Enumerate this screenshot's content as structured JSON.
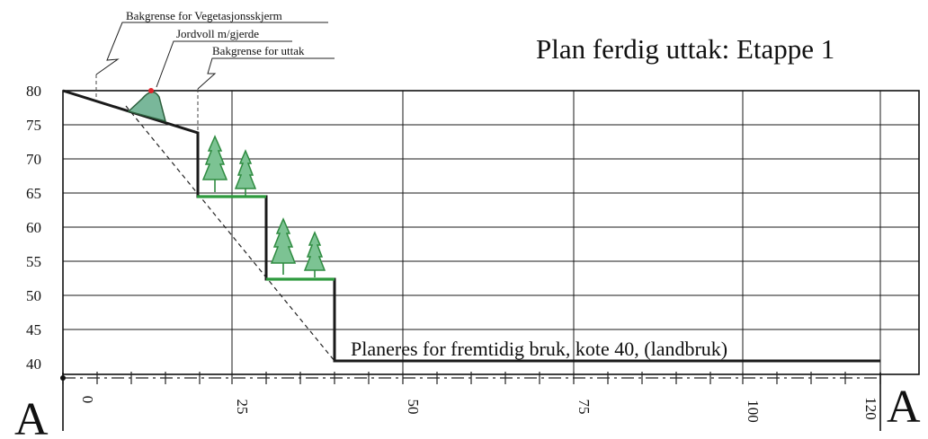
{
  "title": "Plan ferdig uttak:   Etappe 1",
  "callouts": {
    "vegetation_limit": "Bakgrense for Vegetasjonsskjerm",
    "berm": "Jordvoll m/gjerde",
    "excavation_limit": "Bakgrense for uttak"
  },
  "annotation": "Planeres for fremtidig bruk, kote 40, (landbruk)",
  "section_labels": {
    "left": "A",
    "right": "A"
  },
  "axes": {
    "y_ticks": [
      "80",
      "75",
      "70",
      "65",
      "60",
      "55",
      "50",
      "45",
      "40"
    ],
    "x_ticks": [
      "0",
      "25",
      "50",
      "75",
      "100",
      "120"
    ]
  },
  "colors": {
    "line": "#1a1a1a",
    "bench_green": "#2e9a3e",
    "tree_fill": "#7cc393",
    "tree_stroke": "#2e8b40",
    "berm_fill": "#79b79a",
    "marker_red": "#e0232a"
  }
}
